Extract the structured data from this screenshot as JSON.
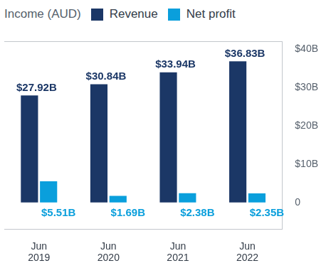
{
  "chart_data": {
    "type": "bar",
    "title": "Income (AUD)",
    "categories": [
      "Jun 2019",
      "Jun 2020",
      "Jun 2021",
      "Jun 2022"
    ],
    "series": [
      {
        "name": "Revenue",
        "color": "#1b3766",
        "values": [
          27.92,
          30.84,
          33.94,
          36.83
        ],
        "value_labels": [
          "$27.92B",
          "$30.84B",
          "$33.94B",
          "$36.83B"
        ]
      },
      {
        "name": "Net profit",
        "color": "#0a9fdc",
        "values": [
          5.51,
          1.69,
          2.38,
          2.35
        ],
        "value_labels": [
          "$5.51B",
          "$1.69B",
          "$2.38B",
          "$2.35B"
        ]
      }
    ],
    "ylim": [
      -7,
      42
    ],
    "yticks": [
      0,
      {
        "value": 10,
        "label": "$10B"
      },
      {
        "value": 20,
        "label": "$20B"
      },
      {
        "value": 30,
        "label": "$30B"
      },
      {
        "value": 40,
        "label": "$40B"
      }
    ],
    "grid": false,
    "legend": "top",
    "data_labels": true
  }
}
